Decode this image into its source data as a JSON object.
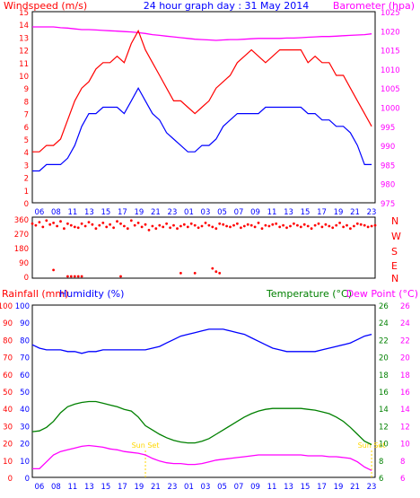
{
  "chart_data": [
    {
      "type": "line",
      "panel": "wind-pressure",
      "title": "24 hour graph day : 31 May 2014",
      "ylabel_left": "Windspeed (m/s)",
      "ylabel_right": "Barometer (hpa)",
      "x_ticks": [
        "06",
        "08",
        "11",
        "13",
        "15",
        "17",
        "19",
        "21",
        "23",
        "01",
        "03",
        "05",
        "07",
        "09",
        "11",
        "13",
        "15",
        "17",
        "19",
        "21",
        "23"
      ],
      "y_left_ticks": [
        "0",
        "1",
        "2",
        "3",
        "4",
        "5",
        "6",
        "7",
        "8",
        "9",
        "10",
        "11",
        "12",
        "13",
        "14",
        "15"
      ],
      "y_left_range": [
        0,
        15
      ],
      "y_right_ticks": [
        "975",
        "980",
        "985",
        "990",
        "995",
        "1000",
        "1005",
        "1010",
        "1015",
        "1020",
        "1025"
      ],
      "y_right_range": [
        975,
        1025
      ],
      "colors": {
        "gust": "#ff0000",
        "average": "#0000ff",
        "pressure": "#ff00ff"
      },
      "series": [
        {
          "key": "gust",
          "hours": [
            5,
            6,
            7,
            8,
            9,
            10,
            11,
            12,
            13,
            14,
            15,
            16,
            17,
            18,
            19,
            20,
            21,
            22,
            23,
            24,
            25,
            26,
            27,
            28,
            29,
            30,
            31,
            32,
            33,
            34,
            35,
            36,
            37,
            38,
            39,
            40,
            41,
            42,
            43,
            44,
            45,
            46,
            47,
            48,
            49,
            50,
            51,
            52,
            53
          ],
          "values": [
            4,
            4,
            4.5,
            4.5,
            5,
            6.5,
            8,
            9,
            9.5,
            10.5,
            11,
            11,
            11.5,
            11,
            12.5,
            13.5,
            12,
            11,
            10,
            9,
            8,
            8,
            7.5,
            7,
            7.5,
            8,
            9,
            9.5,
            10,
            11,
            11.5,
            12,
            11.5,
            11,
            11.5,
            12,
            12,
            12,
            12,
            11,
            11.5,
            11,
            11,
            10,
            10,
            9,
            8,
            7,
            6
          ]
        },
        {
          "key": "average",
          "hours": [
            5,
            6,
            7,
            8,
            9,
            10,
            11,
            12,
            13,
            14,
            15,
            16,
            17,
            18,
            19,
            20,
            21,
            22,
            23,
            24,
            25,
            26,
            27,
            28,
            29,
            30,
            31,
            32,
            33,
            34,
            35,
            36,
            37,
            38,
            39,
            40,
            41,
            42,
            43,
            44,
            45,
            46,
            47,
            48,
            49,
            50,
            51,
            52,
            53
          ],
          "values": [
            2.5,
            2.5,
            3,
            3,
            3,
            3.5,
            4.5,
            6,
            7,
            7,
            7.5,
            7.5,
            7.5,
            7,
            8,
            9,
            8,
            7,
            6.5,
            5.5,
            5,
            4.5,
            4,
            4,
            4.5,
            4.5,
            5,
            6,
            6.5,
            7,
            7,
            7,
            7,
            7.5,
            7.5,
            7.5,
            7.5,
            7.5,
            7.5,
            7,
            7,
            6.5,
            6.5,
            6,
            6,
            5.5,
            4.5,
            3,
            3
          ]
        },
        {
          "key": "pressure",
          "hours": [
            5,
            6,
            7,
            8,
            9,
            10,
            11,
            12,
            13,
            14,
            15,
            16,
            17,
            18,
            19,
            20,
            21,
            22,
            23,
            24,
            25,
            26,
            27,
            28,
            29,
            30,
            31,
            32,
            33,
            34,
            35,
            36,
            37,
            38,
            39,
            40,
            41,
            42,
            43,
            44,
            45,
            46,
            47,
            48,
            49,
            50,
            51,
            52,
            53
          ],
          "values": [
            1021,
            1021,
            1021,
            1021,
            1020.8,
            1020.7,
            1020.5,
            1020.3,
            1020.3,
            1020.2,
            1020.1,
            1020,
            1019.9,
            1019.8,
            1019.7,
            1019.5,
            1019.3,
            1019,
            1018.8,
            1018.6,
            1018.4,
            1018.2,
            1018,
            1017.8,
            1017.7,
            1017.6,
            1017.5,
            1017.6,
            1017.7,
            1017.7,
            1017.8,
            1017.9,
            1018,
            1018,
            1018,
            1018,
            1018.1,
            1018.1,
            1018.2,
            1018.3,
            1018.4,
            1018.5,
            1018.5,
            1018.6,
            1018.7,
            1018.8,
            1018.9,
            1019,
            1019.2
          ]
        }
      ]
    },
    {
      "type": "scatter",
      "panel": "wind-direction",
      "y_ticks": [
        "360",
        "270",
        "180",
        "90",
        "0"
      ],
      "y_range": [
        0,
        360
      ],
      "compass_labels": [
        "N",
        "W",
        "S",
        "E",
        "N"
      ],
      "color": "#ff0000",
      "points": {
        "hours": [
          5,
          5.5,
          6,
          6.5,
          7,
          7.5,
          8,
          8.5,
          9,
          9.5,
          10,
          10.5,
          11,
          11.5,
          12,
          12.5,
          13,
          13.5,
          14,
          14.5,
          15,
          15.5,
          16,
          16.5,
          17,
          17.5,
          18,
          18.5,
          19,
          19.5,
          20,
          20.5,
          21,
          21.5,
          22,
          22.5,
          23,
          23.5,
          24,
          24.5,
          25,
          25.5,
          26,
          26.5,
          27,
          27.5,
          28,
          28.5,
          29,
          29.5,
          30,
          30.5,
          31,
          31.5,
          32,
          32.5,
          33,
          33.5,
          34,
          34.5,
          35,
          35.5,
          36,
          36.5,
          37,
          37.5,
          38,
          38.5,
          39,
          39.5,
          40,
          40.5,
          41,
          41.5,
          42,
          42.5,
          43,
          43.5,
          44,
          44.5,
          45,
          45.5,
          46,
          46.5,
          47,
          47.5,
          48,
          48.5,
          49,
          49.5,
          50,
          50.5,
          51,
          51.5,
          52,
          52.5,
          53,
          53.5
        ],
        "values": [
          330,
          320,
          340,
          310,
          350,
          325,
          335,
          315,
          345,
          300,
          330,
          320,
          310,
          305,
          330,
          315,
          340,
          325,
          300,
          320,
          335,
          310,
          325,
          305,
          345,
          330,
          315,
          300,
          350,
          320,
          335,
          310,
          325,
          290,
          315,
          300,
          320,
          310,
          330,
          305,
          320,
          300,
          315,
          325,
          310,
          330,
          320,
          305,
          315,
          335,
          320,
          310,
          300,
          330,
          325,
          315,
          310,
          320,
          330,
          305,
          315,
          325,
          320,
          310,
          335,
          300,
          320,
          315,
          325,
          330,
          310,
          320,
          305,
          315,
          330,
          320,
          310,
          325,
          315,
          300,
          320,
          330,
          310,
          325,
          315,
          305,
          320,
          335,
          310,
          320,
          300,
          315,
          330,
          325,
          320,
          310,
          315,
          320
        ],
        "low_hours": [
          8,
          10,
          10.5,
          11,
          11.5,
          12,
          17.5,
          26,
          28,
          30.5,
          31,
          31.5
        ],
        "low_values": [
          40,
          0,
          0,
          0,
          0,
          0,
          0,
          20,
          20,
          50,
          30,
          20
        ]
      }
    },
    {
      "type": "line",
      "panel": "rain-humidity-temperature",
      "ylabel_rain": "Rainfall (mm)",
      "ylabel_humidity": "Humidity (%)",
      "ylabel_temp": "Temperature (°C)",
      "ylabel_dew": "Dew Point (°C)",
      "y_left_ticks": [
        "0",
        "10",
        "20",
        "30",
        "40",
        "50",
        "60",
        "70",
        "80",
        "90",
        "100"
      ],
      "y_left_range": [
        0,
        100
      ],
      "y_right_ticks": [
        "6",
        "8",
        "10",
        "12",
        "14",
        "16",
        "18",
        "20",
        "22",
        "24",
        "26"
      ],
      "y_right_range": [
        6,
        26
      ],
      "x_ticks": [
        "06",
        "08",
        "11",
        "13",
        "15",
        "17",
        "19",
        "21",
        "23",
        "01",
        "03",
        "05",
        "07",
        "09",
        "11",
        "13",
        "15",
        "17",
        "19",
        "21",
        "23"
      ],
      "sun_labels": [
        {
          "hour": 21,
          "label": "Sun Set"
        },
        {
          "hour": 53,
          "label": "Sun Set"
        }
      ],
      "colors": {
        "humidity": "#0000ff",
        "temperature": "#008000",
        "dewpoint": "#ff00ff",
        "sun": "#ffd700",
        "rain": "#ff0000"
      },
      "series": [
        {
          "key": "humidity",
          "hours": [
            5,
            6,
            7,
            8,
            9,
            10,
            11,
            12,
            13,
            14,
            15,
            16,
            17,
            18,
            19,
            20,
            21,
            22,
            23,
            24,
            25,
            26,
            27,
            28,
            29,
            30,
            31,
            32,
            33,
            34,
            35,
            36,
            37,
            38,
            39,
            40,
            41,
            42,
            43,
            44,
            45,
            46,
            47,
            48,
            49,
            50,
            51,
            52,
            53
          ],
          "values": [
            77,
            75,
            74,
            74,
            74,
            73,
            73,
            72,
            73,
            73,
            74,
            74,
            74,
            74,
            74,
            74,
            74,
            75,
            76,
            78,
            80,
            82,
            83,
            84,
            85,
            86,
            86,
            86,
            85,
            84,
            83,
            81,
            79,
            77,
            75,
            74,
            73,
            73,
            73,
            73,
            73,
            74,
            75,
            76,
            77,
            78,
            80,
            82,
            83
          ]
        },
        {
          "key": "temperature",
          "hours": [
            5,
            6,
            7,
            8,
            9,
            10,
            11,
            12,
            13,
            14,
            15,
            16,
            17,
            18,
            19,
            20,
            21,
            22,
            23,
            24,
            25,
            26,
            27,
            28,
            29,
            30,
            31,
            32,
            33,
            34,
            35,
            36,
            37,
            38,
            39,
            40,
            41,
            42,
            43,
            44,
            45,
            46,
            47,
            48,
            49,
            50,
            51,
            52,
            53
          ],
          "values": [
            11.3,
            11.4,
            11.8,
            12.5,
            13.5,
            14.2,
            14.5,
            14.7,
            14.8,
            14.8,
            14.6,
            14.4,
            14.2,
            13.9,
            13.7,
            13,
            12,
            11.5,
            11,
            10.6,
            10.3,
            10.1,
            10,
            10,
            10.2,
            10.5,
            11,
            11.5,
            12,
            12.5,
            13,
            13.4,
            13.7,
            13.9,
            14,
            14,
            14,
            14,
            14,
            13.9,
            13.8,
            13.6,
            13.4,
            13,
            12.5,
            11.8,
            11,
            10.2,
            9.8
          ]
        },
        {
          "key": "dewpoint",
          "hours": [
            5,
            6,
            7,
            8,
            9,
            10,
            11,
            12,
            13,
            14,
            15,
            16,
            17,
            18,
            19,
            20,
            21,
            22,
            23,
            24,
            25,
            26,
            27,
            28,
            29,
            30,
            31,
            32,
            33,
            34,
            35,
            36,
            37,
            38,
            39,
            40,
            41,
            42,
            43,
            44,
            45,
            46,
            47,
            48,
            49,
            50,
            51,
            52,
            53
          ],
          "values": [
            7,
            7,
            7.8,
            8.6,
            9,
            9.2,
            9.4,
            9.6,
            9.7,
            9.6,
            9.5,
            9.3,
            9.2,
            9,
            8.9,
            8.8,
            8.6,
            8.2,
            7.9,
            7.7,
            7.6,
            7.6,
            7.5,
            7.5,
            7.6,
            7.8,
            8,
            8.1,
            8.2,
            8.3,
            8.4,
            8.5,
            8.6,
            8.6,
            8.6,
            8.6,
            8.6,
            8.6,
            8.6,
            8.5,
            8.5,
            8.5,
            8.4,
            8.4,
            8.3,
            8.2,
            7.8,
            7.2,
            6.8
          ]
        }
      ]
    }
  ]
}
